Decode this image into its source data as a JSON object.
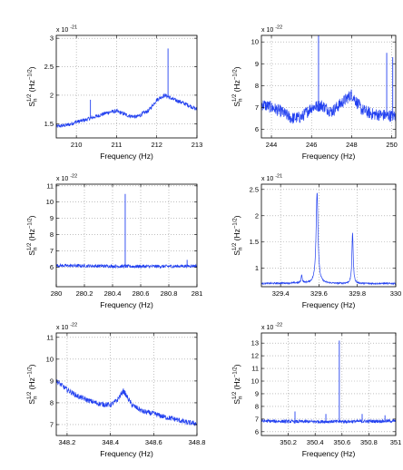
{
  "chart_data": [
    {
      "type": "line",
      "xlabel": "Frequency (Hz)",
      "ylabel": "S_n^{1/2} (Hz^{-1/2})",
      "y_multiplier": "x 10",
      "y_exponent": "-21",
      "xlim": [
        209.5,
        213
      ],
      "ylim": [
        1.25,
        3.05
      ],
      "xticks": [
        210,
        211,
        212,
        213
      ],
      "yticks": [
        1.5,
        2,
        2.5,
        3
      ],
      "grid": true,
      "series": [
        {
          "color": "#2341f0",
          "x": [
            209.5,
            209.8,
            210.0,
            210.2,
            210.5,
            210.8,
            211.0,
            211.3,
            211.5,
            211.8,
            212.0,
            212.2,
            212.4,
            212.6,
            212.8,
            213.0
          ],
          "y": [
            1.45,
            1.48,
            1.53,
            1.56,
            1.63,
            1.7,
            1.72,
            1.64,
            1.62,
            1.73,
            1.92,
            2.0,
            1.93,
            1.88,
            1.82,
            1.75
          ],
          "noise": 0.035,
          "spikes": [
            [
              210.35,
              1.92
            ],
            [
              212.28,
              2.82
            ]
          ]
        }
      ]
    },
    {
      "type": "line",
      "xlabel": "Frequency (Hz)",
      "ylabel": "S_n^{1/2} (Hz^{-1/2})",
      "y_multiplier": "x 10",
      "y_exponent": "-22",
      "xlim": [
        243.5,
        250.2
      ],
      "ylim": [
        5.6,
        10.3
      ],
      "xticks": [
        244,
        246,
        248,
        250
      ],
      "yticks": [
        6,
        7,
        8,
        9,
        10
      ],
      "grid": true,
      "series": [
        {
          "color": "#2341f0",
          "x": [
            243.5,
            244.0,
            244.5,
            245.0,
            245.5,
            246.0,
            246.5,
            247.0,
            247.5,
            248.0,
            248.5,
            249.0,
            249.5,
            250.2
          ],
          "y": [
            7.15,
            7.0,
            6.8,
            6.5,
            6.55,
            7.0,
            7.1,
            6.8,
            7.2,
            7.6,
            6.9,
            6.7,
            6.65,
            6.6
          ],
          "noise": 0.28,
          "spikes": [
            [
              246.35,
              10.3
            ],
            [
              249.75,
              9.5
            ],
            [
              250.05,
              9.3
            ]
          ]
        }
      ]
    },
    {
      "type": "line",
      "xlabel": "Frequency (Hz)",
      "ylabel": "S_n^{1/2} (Hz^{-1/2})",
      "y_multiplier": "x 10",
      "y_exponent": "-22",
      "xlim": [
        280,
        281
      ],
      "ylim": [
        4.8,
        11.1
      ],
      "xticks": [
        280,
        280.2,
        280.4,
        280.6,
        280.8,
        281
      ],
      "yticks": [
        6,
        7,
        8,
        9,
        10,
        11
      ],
      "grid": true,
      "series": [
        {
          "color": "#2341f0",
          "x": [
            280,
            280.25,
            280.5,
            280.75,
            281
          ],
          "y": [
            6.1,
            6.08,
            6.05,
            6.05,
            6.08
          ],
          "noise": 0.1,
          "spikes": [
            [
              280.49,
              10.5
            ],
            [
              280.93,
              6.45
            ]
          ]
        }
      ]
    },
    {
      "type": "line",
      "xlabel": "Frequency (Hz)",
      "ylabel": "S_n^{1/2} (Hz^{-1/2})",
      "y_multiplier": "x 10",
      "y_exponent": "-21",
      "xlim": [
        329.3,
        330
      ],
      "ylim": [
        0.65,
        2.6
      ],
      "xticks": [
        329.4,
        329.6,
        329.8,
        330
      ],
      "yticks": [
        1,
        1.5,
        2,
        2.5
      ],
      "grid": true,
      "series": [
        {
          "color": "#2341f0",
          "x": [
            329.3,
            329.5,
            329.7,
            329.9,
            330
          ],
          "y": [
            0.71,
            0.72,
            0.71,
            0.71,
            0.71
          ],
          "noise": 0.015,
          "peaks": [
            [
              329.59,
              2.45,
              0.006
            ],
            [
              329.775,
              1.68,
              0.004
            ],
            [
              329.51,
              0.88,
              0.003
            ]
          ]
        }
      ]
    },
    {
      "type": "line",
      "xlabel": "Frequency (Hz)",
      "ylabel": "S_n^{1/2} (Hz^{-1/2})",
      "y_multiplier": "x 10",
      "y_exponent": "-22",
      "xlim": [
        348.15,
        348.8
      ],
      "ylim": [
        6.5,
        11.2
      ],
      "xticks": [
        348.2,
        348.4,
        348.6,
        348.8
      ],
      "yticks": [
        7,
        8,
        9,
        10,
        11
      ],
      "grid": true,
      "series": [
        {
          "color": "#2341f0",
          "x": [
            348.15,
            348.2,
            348.25,
            348.3,
            348.35,
            348.4,
            348.43,
            348.46,
            348.5,
            348.55,
            348.6,
            348.65,
            348.7,
            348.75,
            348.8
          ],
          "y": [
            9.0,
            8.6,
            8.3,
            8.1,
            7.95,
            7.9,
            8.1,
            8.55,
            7.9,
            7.6,
            7.5,
            7.35,
            7.25,
            7.1,
            7.05
          ],
          "noise": 0.12,
          "spikes": []
        }
      ]
    },
    {
      "type": "line",
      "xlabel": "Frequency (Hz)",
      "ylabel": "S_n^{1/2} (Hz^{-1/2})",
      "y_multiplier": "x 10",
      "y_exponent": "-22",
      "xlim": [
        350,
        351
      ],
      "ylim": [
        5.7,
        13.8
      ],
      "xticks": [
        350.2,
        350.4,
        350.6,
        350.8,
        351
      ],
      "yticks": [
        6,
        7,
        8,
        9,
        10,
        11,
        12,
        13
      ],
      "grid": true,
      "series": [
        {
          "color": "#2341f0",
          "x": [
            350,
            350.25,
            350.5,
            350.75,
            351
          ],
          "y": [
            6.85,
            6.8,
            6.8,
            6.82,
            6.85
          ],
          "noise": 0.13,
          "spikes": [
            [
              350.58,
              13.2
            ],
            [
              350.25,
              7.6
            ],
            [
              350.48,
              7.4
            ],
            [
              350.75,
              7.4
            ],
            [
              350.92,
              7.3
            ]
          ]
        }
      ]
    }
  ]
}
